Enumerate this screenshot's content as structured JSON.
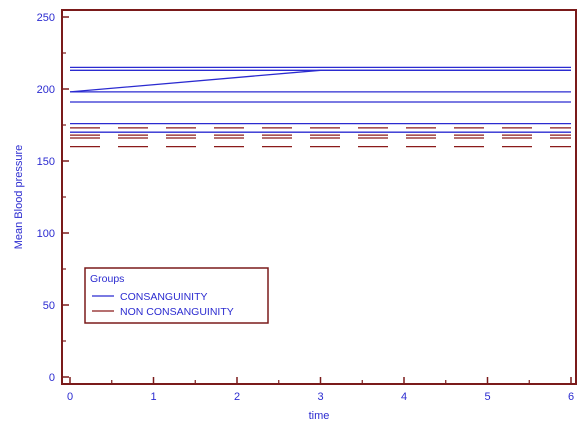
{
  "chart_data": {
    "type": "line",
    "xlabel": "time",
    "ylabel": "Mean Blood pressure",
    "xlim": [
      0,
      6
    ],
    "ylim": [
      0,
      250
    ],
    "x_ticks": [
      "0",
      "1",
      "2",
      "3",
      "4",
      "5",
      "6"
    ],
    "y_ticks": [
      "0",
      "50",
      "100",
      "150",
      "200",
      "250"
    ],
    "grid": false,
    "legend": {
      "title": "Groups",
      "placement": "bottom-left",
      "entries": [
        {
          "label": "CONSANGUINITY",
          "color": "#2b2bd0",
          "style": "solid"
        },
        {
          "label": "NON CONSANGUINITY",
          "color": "#8b1a1a",
          "style": "dashed"
        }
      ]
    },
    "series": [
      {
        "group": "CONSANGUINITY",
        "color": "#2b2bd0",
        "dashed": false,
        "x": [
          0,
          3,
          6
        ],
        "y": [
          198,
          213,
          213
        ]
      },
      {
        "group": "CONSANGUINITY",
        "color": "#2b2bd0",
        "dashed": false,
        "x": [
          0,
          6
        ],
        "y": [
          215,
          215
        ]
      },
      {
        "group": "CONSANGUINITY",
        "color": "#2b2bd0",
        "dashed": false,
        "x": [
          0,
          6
        ],
        "y": [
          213,
          213
        ]
      },
      {
        "group": "CONSANGUINITY",
        "color": "#2b2bd0",
        "dashed": false,
        "x": [
          0,
          6
        ],
        "y": [
          198,
          198
        ]
      },
      {
        "group": "CONSANGUINITY",
        "color": "#2b2bd0",
        "dashed": false,
        "x": [
          0,
          6
        ],
        "y": [
          191,
          191
        ]
      },
      {
        "group": "CONSANGUINITY",
        "color": "#2b2bd0",
        "dashed": false,
        "x": [
          0,
          6
        ],
        "y": [
          176,
          176
        ]
      },
      {
        "group": "CONSANGUINITY",
        "color": "#2b2bd0",
        "dashed": false,
        "x": [
          0,
          6
        ],
        "y": [
          170,
          170
        ]
      },
      {
        "group": "NON CONSANGUINITY",
        "color": "#8b1a1a",
        "dashed": true,
        "x": [
          0,
          6
        ],
        "y": [
          173,
          173
        ]
      },
      {
        "group": "NON CONSANGUINITY",
        "color": "#8b1a1a",
        "dashed": true,
        "x": [
          0,
          6
        ],
        "y": [
          168,
          168
        ]
      },
      {
        "group": "NON CONSANGUINITY",
        "color": "#8b1a1a",
        "dashed": true,
        "x": [
          0,
          6
        ],
        "y": [
          166,
          166
        ]
      },
      {
        "group": "NON CONSANGUINITY",
        "color": "#8b1a1a",
        "dashed": true,
        "x": [
          0,
          6
        ],
        "y": [
          160,
          160
        ]
      }
    ]
  },
  "colors": {
    "frame": "#7a1a1a",
    "consanguinity": "#2b2bd0",
    "non_consanguinity": "#8b1a1a",
    "text": "#2b2bd0"
  }
}
